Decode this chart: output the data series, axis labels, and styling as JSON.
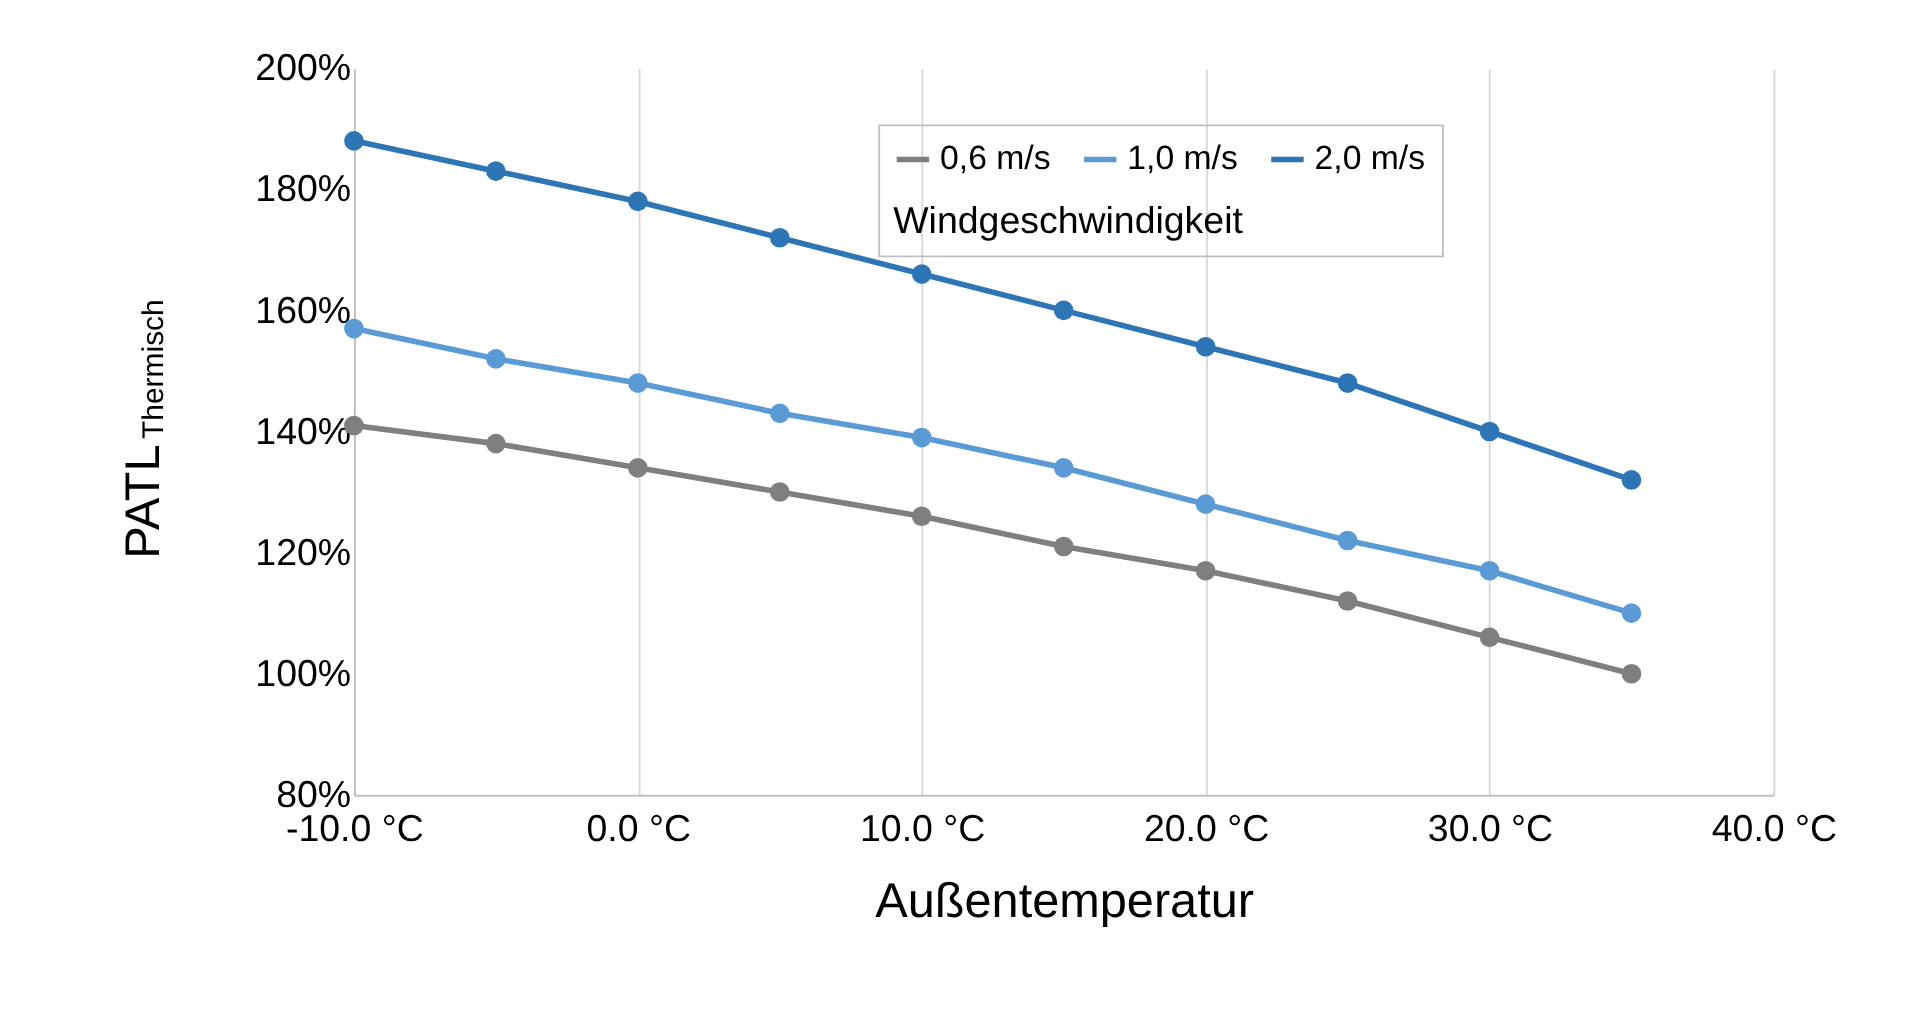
{
  "chart_data": {
    "type": "line",
    "xlabel": "Außentemperatur",
    "ylabel": "PATL$_{Thermisch}$",
    "legend_title": "Windgeschwindigkeit",
    "x": [
      -10,
      -5,
      0,
      5,
      10,
      15,
      20,
      25,
      30,
      35
    ],
    "series": [
      {
        "name": "0,6 m/s",
        "color": "#7f7f7f",
        "values": [
          141,
          138,
          134,
          130,
          126,
          121,
          117,
          112,
          106,
          100
        ]
      },
      {
        "name": "1,0 m/s",
        "color": "#5b9bd5",
        "values": [
          157,
          152,
          148,
          143,
          139,
          134,
          128,
          122,
          117,
          110
        ]
      },
      {
        "name": "2,0 m/s",
        "color": "#2e75b6",
        "values": [
          188,
          183,
          178,
          172,
          166,
          160,
          154,
          148,
          140,
          132
        ]
      }
    ],
    "xlim": [
      -10,
      40
    ],
    "ylim": [
      80,
      200
    ],
    "xticks": [
      {
        "value": -10,
        "label": "-10.0 °C"
      },
      {
        "value": 0,
        "label": "0.0 °C"
      },
      {
        "value": 10,
        "label": "10.0 °C"
      },
      {
        "value": 20,
        "label": "20.0 °C"
      },
      {
        "value": 30,
        "label": "30.0 °C"
      },
      {
        "value": 40,
        "label": "40.0 °C"
      }
    ],
    "yticks": [
      {
        "value": 80,
        "label": "80%"
      },
      {
        "value": 100,
        "label": "100%"
      },
      {
        "value": 120,
        "label": "120%"
      },
      {
        "value": 140,
        "label": "140%"
      },
      {
        "value": 160,
        "label": "160%"
      },
      {
        "value": 180,
        "label": "180%"
      },
      {
        "value": 200,
        "label": "200%"
      }
    ],
    "grid": "x",
    "legend": "top right",
    "marker": "circle",
    "line_style": "solid"
  }
}
